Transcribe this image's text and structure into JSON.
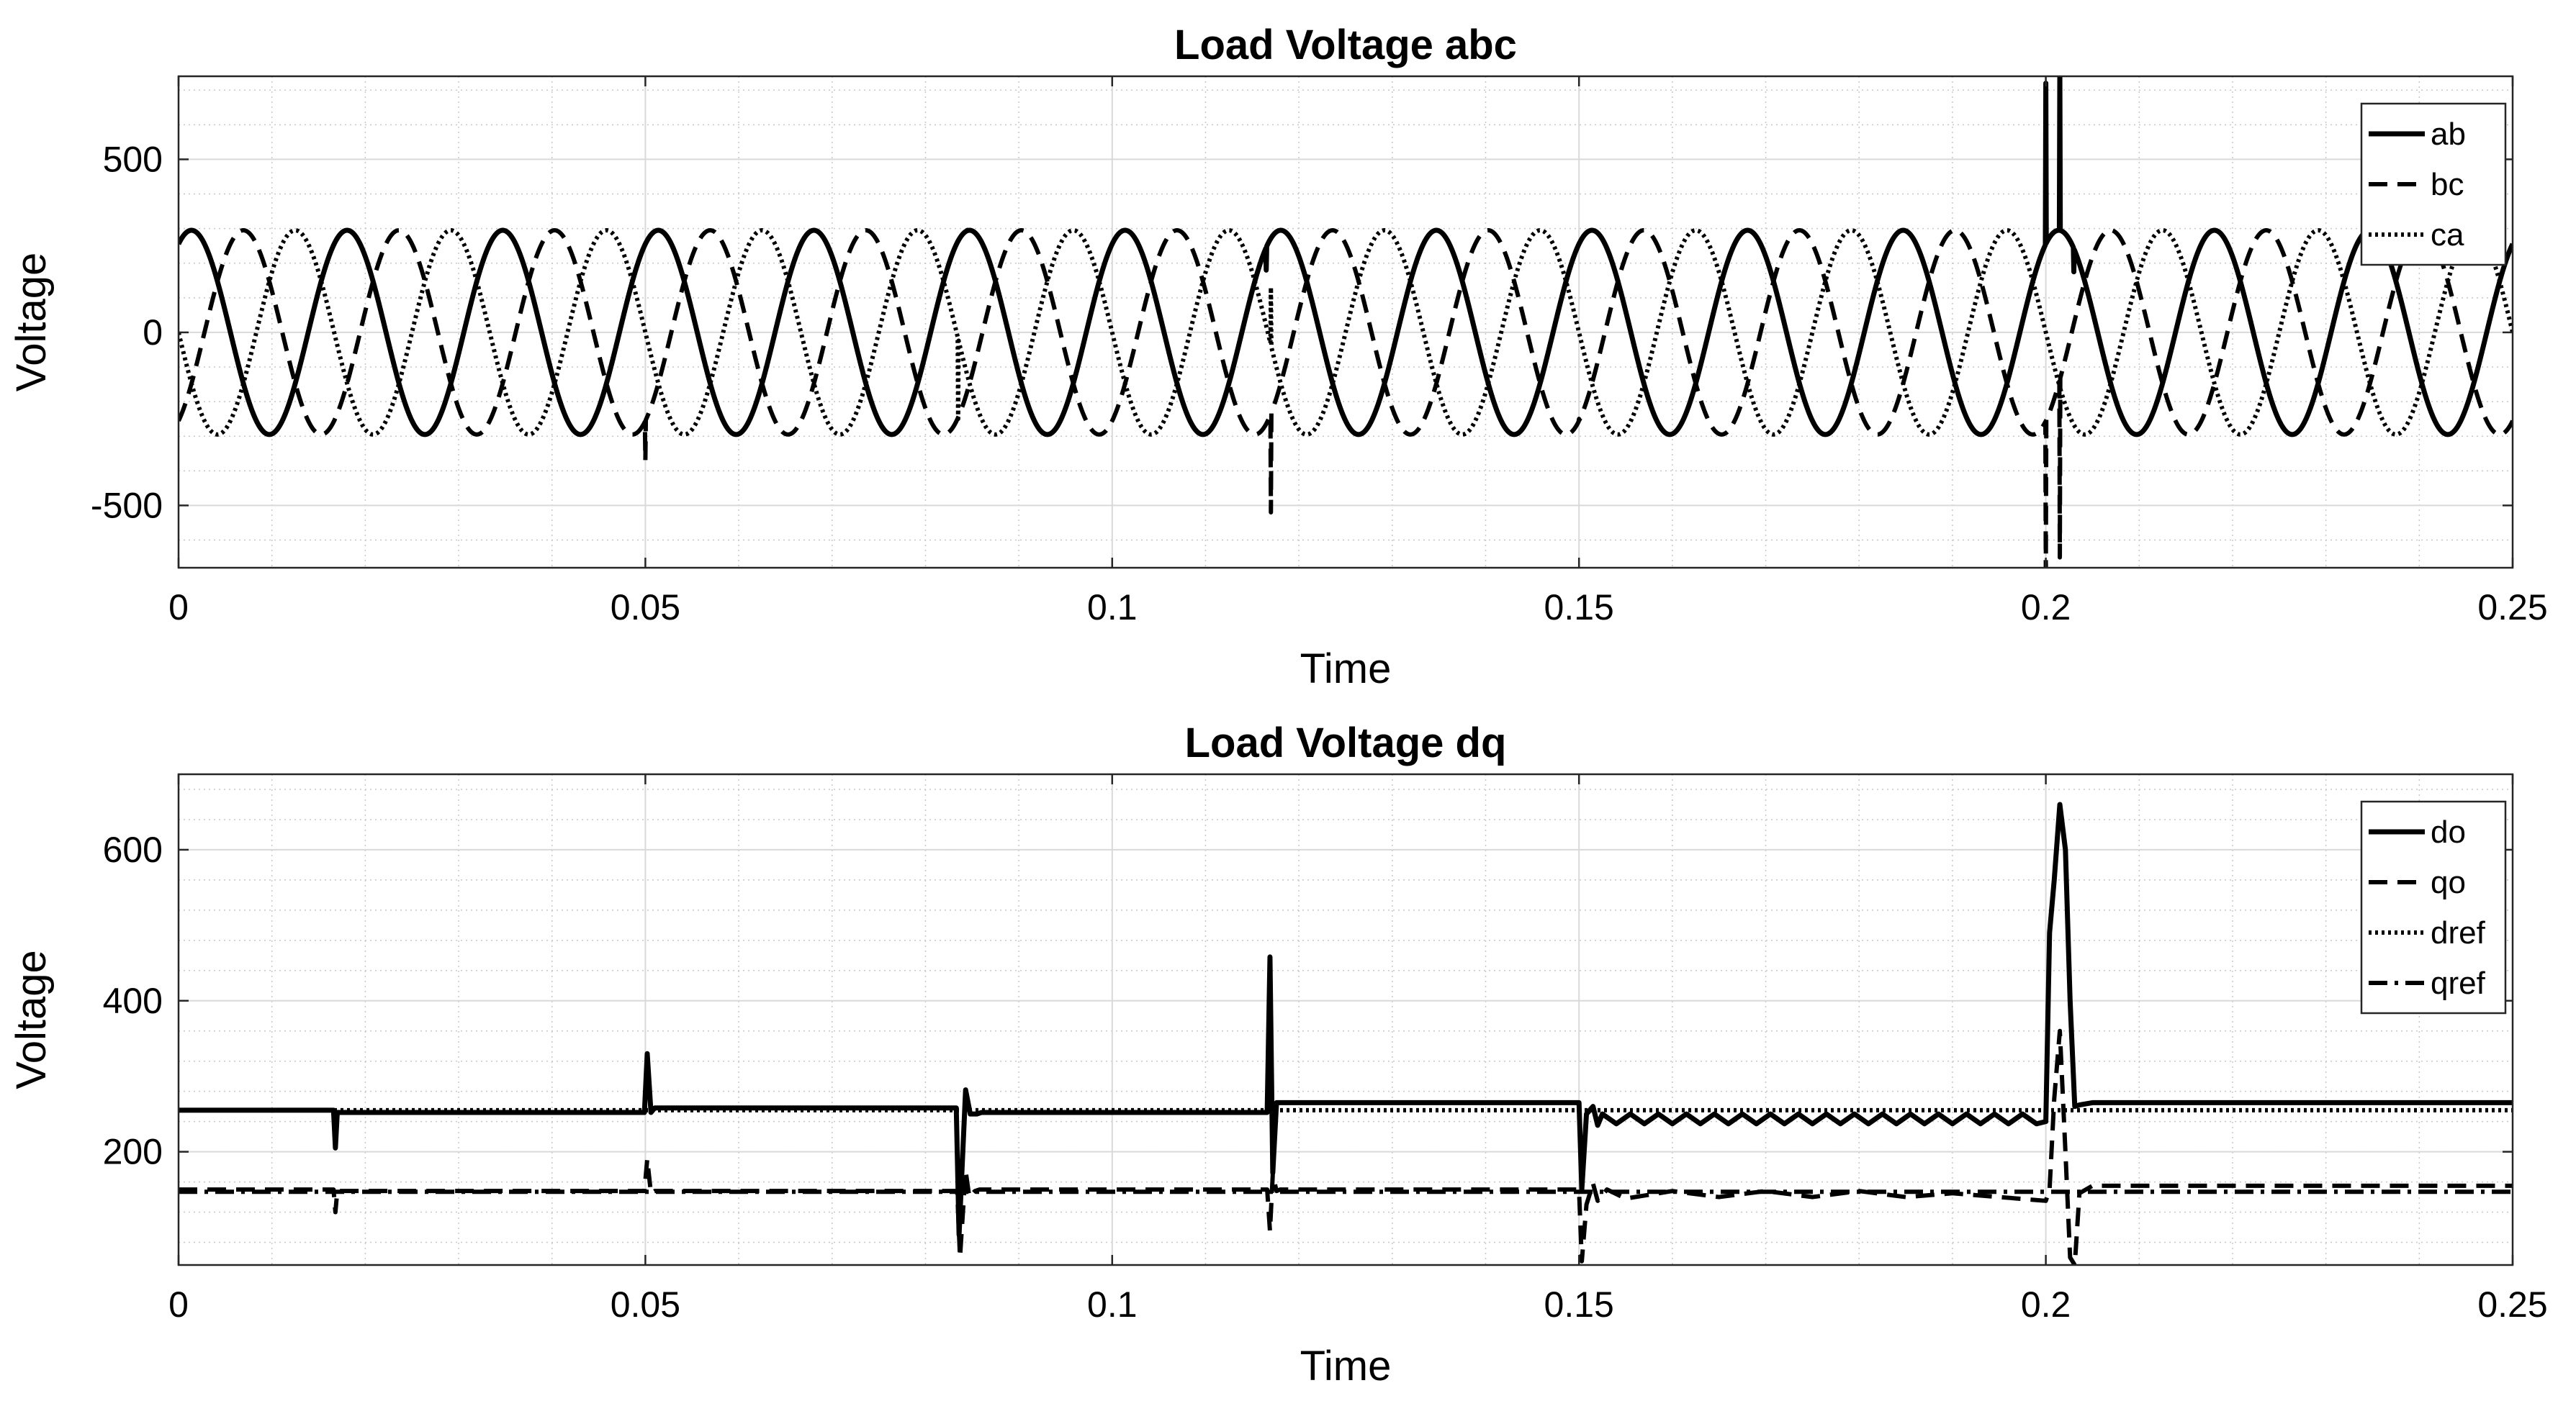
{
  "chart_data": [
    {
      "type": "line",
      "title": "Load Voltage abc",
      "xlabel": "Time",
      "ylabel": "Voltage",
      "xlim": [
        0,
        0.25
      ],
      "ylim": [
        -680,
        740
      ],
      "xticks": [
        0,
        0.05,
        0.1,
        0.15,
        0.2,
        0.25
      ],
      "xtick_labels": [
        "0",
        "0.05",
        "0.1",
        "0.15",
        "0.2",
        "0.25"
      ],
      "yticks": [
        -500,
        0,
        500
      ],
      "ytick_labels": [
        "-500",
        "0",
        "500"
      ],
      "grid": true,
      "minor_grid": true,
      "legend_position": "top-right",
      "waveform": {
        "amplitude": 295,
        "frequency_hz": 60,
        "samples_per_second": 20000
      },
      "series": [
        {
          "name": "ab",
          "style": "solid",
          "phase_deg": 60,
          "events": [
            [
              0.0845,
              295
            ],
            [
              0.1165,
              180
            ],
            [
              0.2,
              720
            ],
            [
              0.2015,
              760
            ],
            [
              0.203,
              175
            ]
          ]
        },
        {
          "name": "bc",
          "style": "dashed",
          "phase_deg": -60,
          "events": [
            [
              0.05,
              -370
            ],
            [
              0.117,
              -520
            ],
            [
              0.15,
              -250
            ],
            [
              0.2,
              -690
            ],
            [
              0.2015,
              -650
            ]
          ]
        },
        {
          "name": "ca",
          "style": "dotted",
          "phase_deg": 180,
          "events": [
            [
              0.0835,
              -250
            ],
            [
              0.117,
              130
            ],
            [
              0.2015,
              -170
            ]
          ]
        }
      ]
    },
    {
      "type": "line",
      "title": "Load Voltage dq",
      "xlabel": "Time",
      "ylabel": "Voltage",
      "xlim": [
        0,
        0.25
      ],
      "ylim": [
        50,
        700
      ],
      "xticks": [
        0,
        0.05,
        0.1,
        0.15,
        0.2,
        0.25
      ],
      "xtick_labels": [
        "0",
        "0.05",
        "0.1",
        "0.15",
        "0.2",
        "0.25"
      ],
      "yticks": [
        200,
        400,
        600
      ],
      "ytick_labels": [
        "200",
        "400",
        "600"
      ],
      "grid": true,
      "minor_grid": true,
      "legend_position": "top-right",
      "series": [
        {
          "name": "do",
          "style": "solid",
          "x": [
            0,
            0.0166,
            0.0168,
            0.017,
            0.0499,
            0.0502,
            0.0506,
            0.051,
            0.0833,
            0.0836,
            0.0843,
            0.0848,
            0.0855,
            0.086,
            0.1166,
            0.1169,
            0.1172,
            0.1176,
            0.118,
            0.15,
            0.1503,
            0.1508,
            0.1515,
            0.152,
            0.1525,
            0.154,
            0.1555,
            0.157,
            0.1585,
            0.16,
            0.1615,
            0.163,
            0.1645,
            0.166,
            0.1675,
            0.169,
            0.1705,
            0.172,
            0.1735,
            0.175,
            0.1765,
            0.178,
            0.1795,
            0.181,
            0.1825,
            0.184,
            0.1855,
            0.187,
            0.1885,
            0.19,
            0.1915,
            0.193,
            0.1945,
            0.196,
            0.1975,
            0.199,
            0.2,
            0.2004,
            0.2009,
            0.2015,
            0.2021,
            0.2026,
            0.2031,
            0.2036,
            0.205,
            0.22,
            0.25
          ],
          "y": [
            255,
            255,
            205,
            252,
            252,
            330,
            252,
            258,
            258,
            90,
            282,
            250,
            250,
            252,
            252,
            458,
            172,
            265,
            265,
            265,
            150,
            250,
            260,
            235,
            250,
            237,
            250,
            237,
            250,
            237,
            250,
            237,
            250,
            237,
            250,
            237,
            250,
            237,
            250,
            237,
            250,
            237,
            250,
            237,
            250,
            237,
            250,
            237,
            250,
            237,
            250,
            237,
            250,
            237,
            250,
            237,
            240,
            490,
            560,
            660,
            600,
            400,
            260,
            262,
            265,
            265,
            265
          ]
        },
        {
          "name": "qo",
          "style": "dashed",
          "x": [
            0,
            0.0166,
            0.0168,
            0.017,
            0.0499,
            0.0502,
            0.0506,
            0.051,
            0.0834,
            0.0837,
            0.0843,
            0.0847,
            0.0853,
            0.0858,
            0.1166,
            0.1169,
            0.1172,
            0.1176,
            0.118,
            0.15,
            0.1503,
            0.1508,
            0.1515,
            0.152,
            0.153,
            0.155,
            0.16,
            0.165,
            0.17,
            0.175,
            0.18,
            0.185,
            0.19,
            0.195,
            0.2,
            0.2004,
            0.2009,
            0.2015,
            0.2021,
            0.2026,
            0.2031,
            0.2036,
            0.205,
            0.25
          ],
          "y": [
            150,
            150,
            120,
            148,
            148,
            190,
            145,
            148,
            148,
            60,
            175,
            140,
            148,
            150,
            150,
            95,
            170,
            148,
            150,
            150,
            55,
            130,
            158,
            135,
            150,
            138,
            148,
            140,
            148,
            140,
            148,
            140,
            145,
            140,
            135,
            150,
            270,
            360,
            200,
            60,
            50,
            145,
            155,
            155
          ]
        },
        {
          "name": "dref",
          "style": "dotted",
          "x": [
            0,
            0.25
          ],
          "y": [
            255,
            255
          ]
        },
        {
          "name": "qref",
          "style": "dashdot",
          "x": [
            0,
            0.25
          ],
          "y": [
            147,
            147
          ]
        }
      ]
    }
  ]
}
